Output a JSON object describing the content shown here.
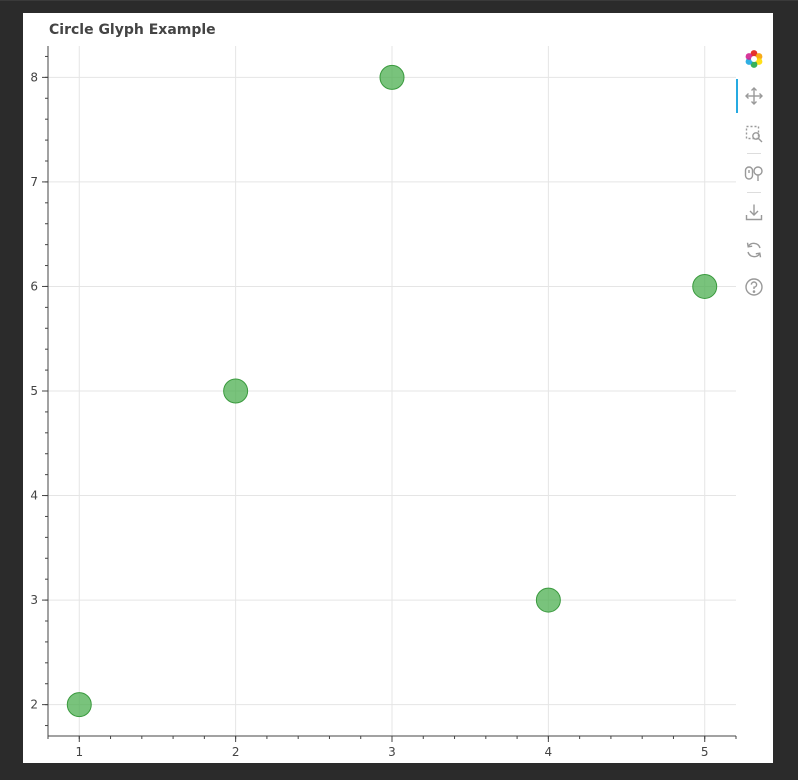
{
  "chart_data": {
    "type": "scatter",
    "title": "Circle Glyph Example",
    "xlabel": "",
    "ylabel": "",
    "x": [
      1,
      2,
      3,
      4,
      5
    ],
    "y": [
      2,
      5,
      8,
      3,
      6
    ],
    "xlim": [
      0.8,
      5.2
    ],
    "ylim": [
      1.7,
      8.3
    ],
    "x_ticks": [
      1,
      2,
      3,
      4,
      5
    ],
    "y_ticks": [
      2,
      3,
      4,
      5,
      6,
      7,
      8
    ],
    "x_tick_labels": [
      "1",
      "2",
      "3",
      "4",
      "5"
    ],
    "y_tick_labels": [
      "2",
      "3",
      "4",
      "5",
      "6",
      "7",
      "8"
    ],
    "grid": true,
    "marker": "circle",
    "marker_color": "#4caf50",
    "marker_stroke": "#3a9a3e",
    "marker_alpha": 0.75
  },
  "toolbar": {
    "tools": [
      {
        "name": "bokeh-logo-icon",
        "label": "Bokeh"
      },
      {
        "name": "pan-icon",
        "label": "Pan"
      },
      {
        "name": "box-zoom-icon",
        "label": "Box Zoom"
      },
      {
        "name": "wheel-zoom-icon",
        "label": "Wheel Zoom"
      },
      {
        "name": "save-icon",
        "label": "Save"
      },
      {
        "name": "reset-icon",
        "label": "Reset"
      },
      {
        "name": "help-icon",
        "label": "Help"
      }
    ],
    "active_color": "#26aae1"
  }
}
